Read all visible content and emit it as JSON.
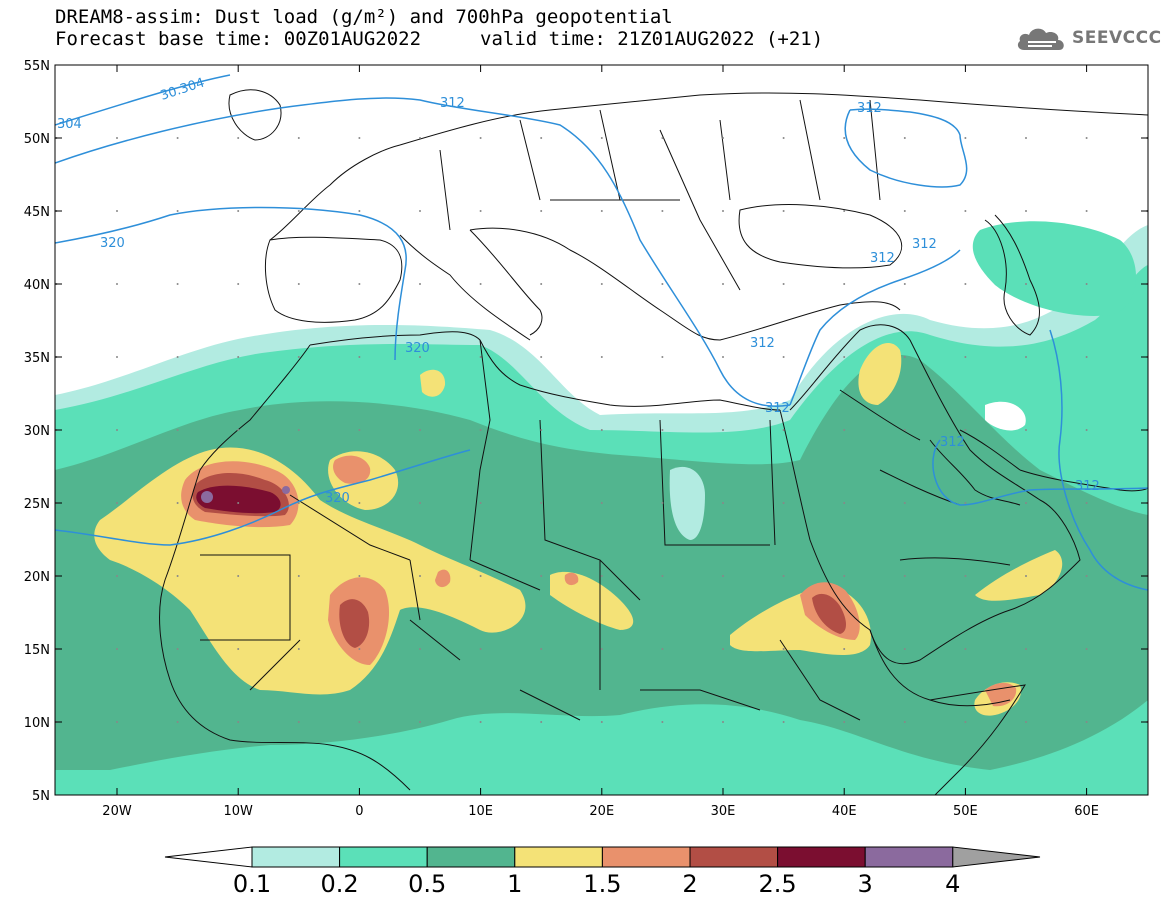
{
  "title_line1": "DREAM8-assim: Dust load (g/m²) and 700hPa geopotential",
  "title_line2": "Forecast base time: 00Z01AUG2022",
  "valid_time": "valid time: 21Z01AUG2022 (+21)",
  "logo_text": "SEEVCCC",
  "map": {
    "lat_labels": [
      "55N",
      "50N",
      "45N",
      "40N",
      "35N",
      "30N",
      "25N",
      "20N",
      "15N",
      "10N",
      "5N"
    ],
    "lon_labels": [
      "20W",
      "10W",
      "0",
      "10E",
      "20E",
      "30E",
      "40E",
      "50E",
      "60E"
    ],
    "contour_labels": [
      "30.304",
      "304",
      "312",
      "312",
      "320",
      "312",
      "320",
      "312",
      "312",
      "312",
      "312",
      "320"
    ]
  },
  "colorbar": {
    "levels": [
      "0.1",
      "0.2",
      "0.5",
      "1",
      "1.5",
      "2",
      "2.5",
      "3",
      "4"
    ],
    "colors": [
      "#b2ebe1",
      "#5be0b8",
      "#52b58f",
      "#f4e277",
      "#e9916c",
      "#b24e45",
      "#7b0e30",
      "#8b6a9e"
    ],
    "under_color": "#ffffff",
    "over_color": "#a0a0a0"
  }
}
